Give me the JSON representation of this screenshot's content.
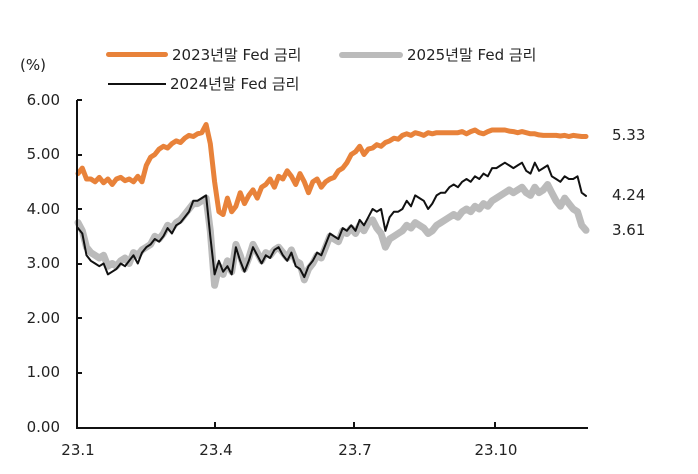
{
  "chart_data": {
    "type": "line",
    "title": "",
    "unit_label": "(%)",
    "xlabel": "",
    "ylabel": "(%)",
    "ylim": [
      0,
      6
    ],
    "y_ticks": [
      "6.00",
      "5.00",
      "4.00",
      "3.00",
      "2.00",
      "1.00",
      "0.00"
    ],
    "x_ticks": [
      "23.1",
      "23.4",
      "23.7",
      "23.10"
    ],
    "grid": false,
    "legend_position": "top",
    "x_note": "Values sampled at ~uniform intervals from 23.1 (early Jan 2023) to mid-Dec 2023",
    "series": [
      {
        "name": "2023년말 Fed 금리",
        "color": "#E8823A",
        "width": 5,
        "end_value": "5.33",
        "values": [
          4.65,
          4.75,
          4.55,
          4.55,
          4.5,
          4.58,
          4.48,
          4.55,
          4.45,
          4.55,
          4.58,
          4.52,
          4.55,
          4.5,
          4.6,
          4.5,
          4.8,
          4.95,
          5.0,
          5.1,
          5.15,
          5.12,
          5.2,
          5.25,
          5.22,
          5.3,
          5.35,
          5.33,
          5.38,
          5.4,
          5.55,
          5.2,
          4.5,
          3.95,
          3.9,
          4.2,
          3.95,
          4.05,
          4.3,
          4.1,
          4.25,
          4.35,
          4.2,
          4.4,
          4.45,
          4.55,
          4.4,
          4.6,
          4.55,
          4.7,
          4.6,
          4.45,
          4.65,
          4.5,
          4.3,
          4.5,
          4.55,
          4.4,
          4.5,
          4.55,
          4.58,
          4.7,
          4.75,
          4.85,
          5.0,
          5.05,
          5.15,
          5.0,
          5.1,
          5.12,
          5.18,
          5.15,
          5.22,
          5.25,
          5.3,
          5.28,
          5.35,
          5.38,
          5.35,
          5.4,
          5.38,
          5.35,
          5.4,
          5.38,
          5.4,
          5.4,
          5.4,
          5.4,
          5.4,
          5.4,
          5.42,
          5.38,
          5.42,
          5.45,
          5.4,
          5.38,
          5.42,
          5.45,
          5.45,
          5.45,
          5.45,
          5.43,
          5.42,
          5.4,
          5.42,
          5.4,
          5.38,
          5.38,
          5.36,
          5.35,
          5.35,
          5.35,
          5.35,
          5.34,
          5.35,
          5.33,
          5.35,
          5.34,
          5.33,
          5.33
        ]
      },
      {
        "name": "2025년말 Fed 금리",
        "color": "#BBBBBB",
        "width": 7,
        "end_value": "3.61",
        "values": [
          3.75,
          3.6,
          3.3,
          3.2,
          3.15,
          3.1,
          3.15,
          2.95,
          3.0,
          2.95,
          3.05,
          3.1,
          3.0,
          3.2,
          3.15,
          3.25,
          3.3,
          3.35,
          3.5,
          3.45,
          3.55,
          3.7,
          3.65,
          3.75,
          3.8,
          3.9,
          4.0,
          4.1,
          4.1,
          4.15,
          4.2,
          3.6,
          2.6,
          2.95,
          2.8,
          3.05,
          2.85,
          3.35,
          3.15,
          2.9,
          3.1,
          3.35,
          3.2,
          3.05,
          3.2,
          3.15,
          3.25,
          3.3,
          3.2,
          3.1,
          3.25,
          3.05,
          3.0,
          2.7,
          2.9,
          3.0,
          3.15,
          3.1,
          3.3,
          3.5,
          3.45,
          3.4,
          3.6,
          3.55,
          3.65,
          3.55,
          3.7,
          3.6,
          3.75,
          3.8,
          3.65,
          3.55,
          3.3,
          3.45,
          3.5,
          3.55,
          3.6,
          3.7,
          3.65,
          3.75,
          3.7,
          3.65,
          3.55,
          3.6,
          3.7,
          3.75,
          3.8,
          3.85,
          3.9,
          3.85,
          3.95,
          4.0,
          3.95,
          4.05,
          4.0,
          4.1,
          4.05,
          4.15,
          4.2,
          4.25,
          4.3,
          4.35,
          4.3,
          4.35,
          4.4,
          4.3,
          4.25,
          4.4,
          4.3,
          4.35,
          4.45,
          4.3,
          4.15,
          4.05,
          4.2,
          4.1,
          4.0,
          3.95,
          3.7,
          3.61
        ]
      },
      {
        "name": "2024년말 Fed 금리",
        "color": "#111111",
        "width": 2,
        "end_value": "4.24",
        "values": [
          3.65,
          3.55,
          3.15,
          3.05,
          3.0,
          2.95,
          3.0,
          2.8,
          2.85,
          2.9,
          3.0,
          2.95,
          3.05,
          3.15,
          3.0,
          3.2,
          3.3,
          3.35,
          3.45,
          3.4,
          3.5,
          3.65,
          3.55,
          3.7,
          3.75,
          3.85,
          3.95,
          4.15,
          4.15,
          4.2,
          4.25,
          3.5,
          2.8,
          3.05,
          2.85,
          2.95,
          2.8,
          3.3,
          3.05,
          2.85,
          3.05,
          3.3,
          3.15,
          3.0,
          3.15,
          3.1,
          3.25,
          3.3,
          3.15,
          3.05,
          3.2,
          2.95,
          2.9,
          2.75,
          2.95,
          3.05,
          3.2,
          3.15,
          3.35,
          3.55,
          3.5,
          3.45,
          3.65,
          3.6,
          3.7,
          3.6,
          3.8,
          3.7,
          3.85,
          4.0,
          3.95,
          4.0,
          3.6,
          3.85,
          3.95,
          3.95,
          4.0,
          4.15,
          4.05,
          4.25,
          4.2,
          4.15,
          4.0,
          4.1,
          4.25,
          4.3,
          4.3,
          4.4,
          4.45,
          4.4,
          4.5,
          4.55,
          4.5,
          4.6,
          4.55,
          4.65,
          4.6,
          4.75,
          4.75,
          4.8,
          4.85,
          4.8,
          4.75,
          4.8,
          4.85,
          4.7,
          4.65,
          4.85,
          4.7,
          4.75,
          4.8,
          4.6,
          4.55,
          4.5,
          4.6,
          4.55,
          4.55,
          4.6,
          4.3,
          4.24
        ]
      }
    ]
  },
  "legend": {
    "items": [
      {
        "label": "2023년말 Fed 금리",
        "color": "#E8823A"
      },
      {
        "label": "2025년말 Fed 금리",
        "color": "#BBBBBB"
      },
      {
        "label": "2024년말 Fed 금리",
        "color": "#111111"
      }
    ]
  }
}
